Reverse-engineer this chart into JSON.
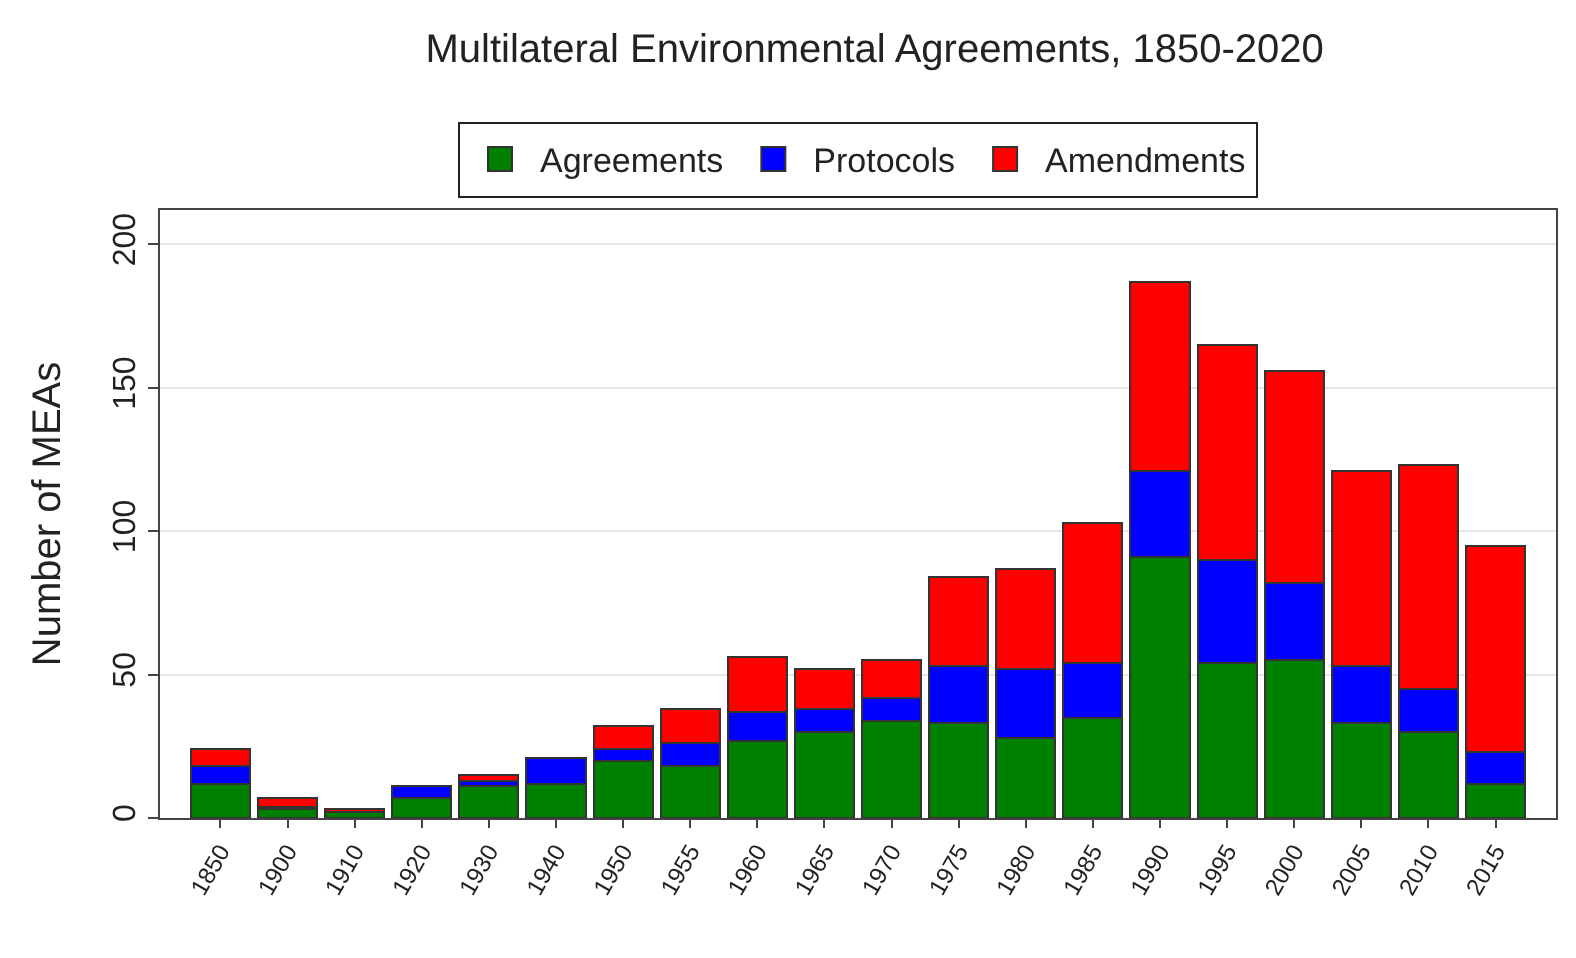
{
  "chart_data": {
    "type": "bar",
    "title": "Multilateral Environmental Agreements, 1850-2020",
    "ylabel": "Number of MEAs",
    "categories": [
      "1850",
      "1900",
      "1910",
      "1920",
      "1930",
      "1940",
      "1950",
      "1955",
      "1960",
      "1965",
      "1970",
      "1975",
      "1980",
      "1985",
      "1990",
      "1995",
      "2000",
      "2005",
      "2010",
      "2015"
    ],
    "series": [
      {
        "name": "Agreements",
        "color": "#008000",
        "values": [
          12,
          3,
          2,
          7,
          11,
          12,
          20,
          18,
          27,
          30,
          34,
          33,
          28,
          35,
          91,
          54,
          55,
          33,
          30,
          12
        ]
      },
      {
        "name": "Protocols",
        "color": "#0000ff",
        "values": [
          6,
          1,
          0,
          4,
          2,
          9,
          4,
          8,
          10,
          8,
          8,
          20,
          24,
          19,
          30,
          36,
          27,
          20,
          15,
          11
        ]
      },
      {
        "name": "Amendments",
        "color": "#ff0000",
        "values": [
          6,
          3,
          1,
          0,
          2,
          0,
          8,
          12,
          19,
          14,
          13,
          31,
          35,
          49,
          66,
          75,
          74,
          68,
          78,
          72
        ]
      }
    ],
    "stacked": true,
    "ylim": [
      0,
      212
    ],
    "yticks": [
      0,
      50,
      100,
      150,
      200
    ],
    "grid": "y",
    "legend": "top"
  }
}
